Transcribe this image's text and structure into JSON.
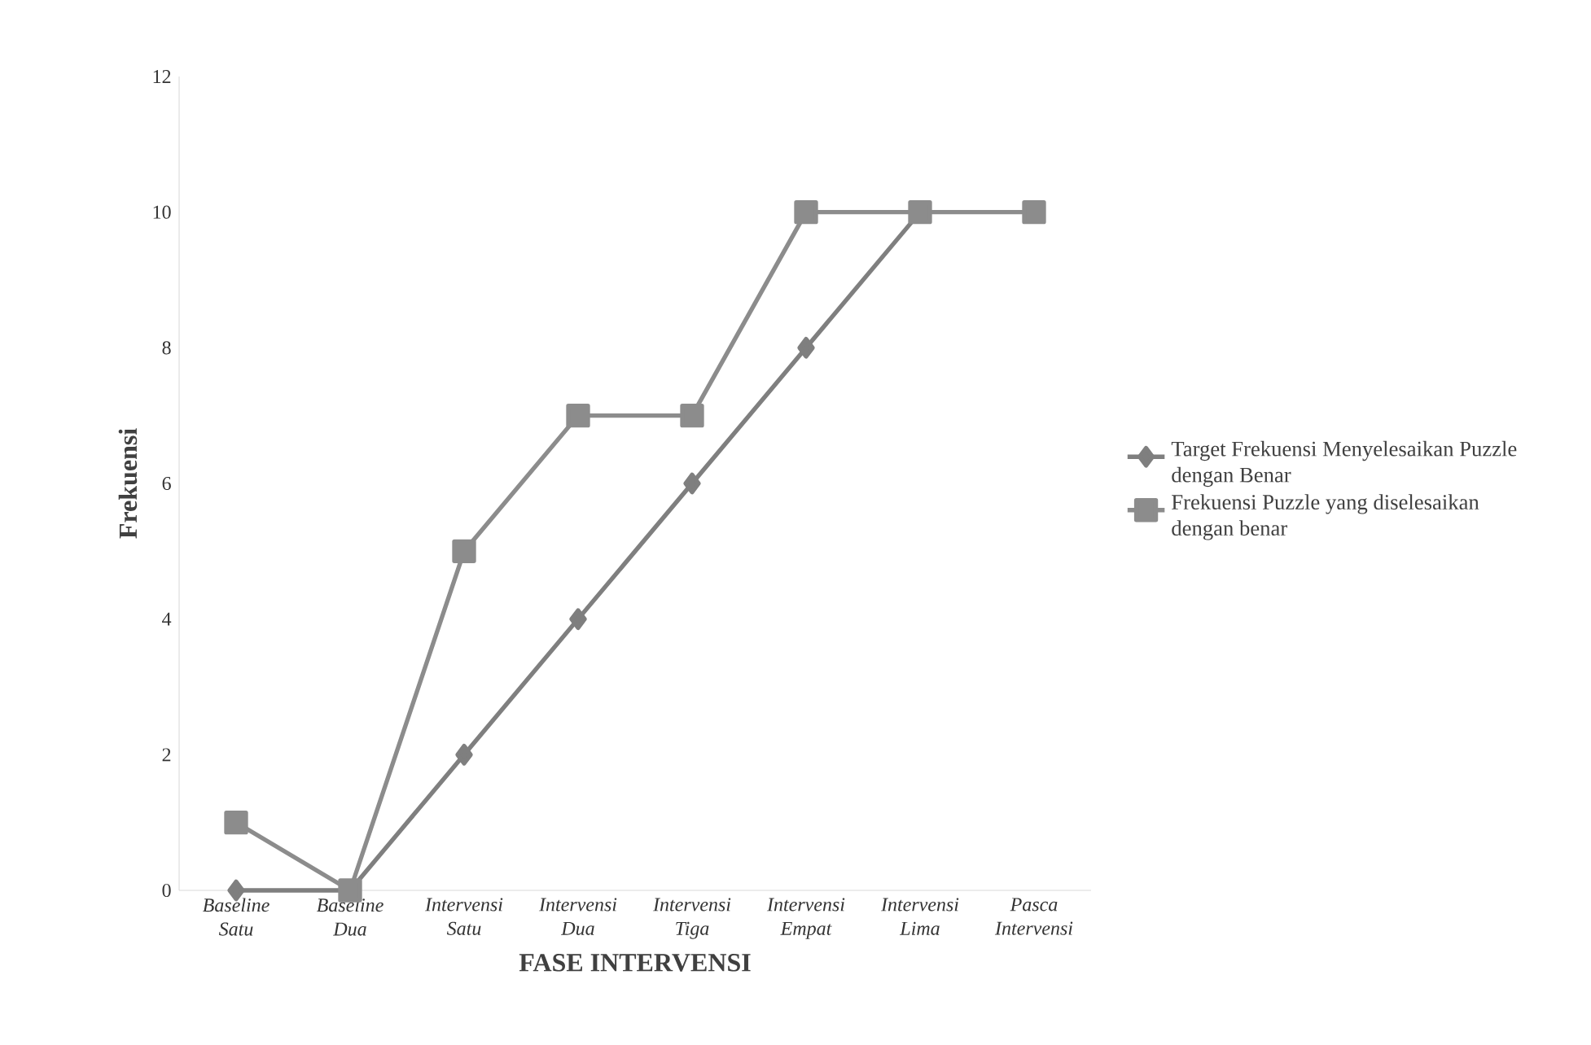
{
  "chart_data": {
    "type": "line",
    "xlabel": "FASE INTERVENSI",
    "ylabel": "Frekuensi",
    "categories": [
      "Baseline Satu",
      "Baseline Dua",
      "Intervensi Satu",
      "Intervensi Dua",
      "Intervensi Tiga",
      "Intervensi Empat",
      "Intervensi Lima",
      "Pasca Intervensi"
    ],
    "series": [
      {
        "name": "Target Frekuensi Menyelesaikan Puzzle dengan Benar",
        "color": "#7f7f7f",
        "marker": "diamond",
        "values": [
          0,
          0,
          2,
          4,
          6,
          8,
          10,
          null
        ]
      },
      {
        "name": "Frekuensi Puzzle yang diselesaikan dengan benar",
        "color": "#8c8c8c",
        "marker": "square",
        "values": [
          1,
          0,
          5,
          7,
          7,
          10,
          10,
          10
        ]
      }
    ],
    "ylim": [
      0,
      12
    ],
    "yticks": [
      0,
      2,
      4,
      6,
      8,
      10,
      12
    ],
    "grid": false,
    "legend": "right",
    "line_style": "solid"
  }
}
